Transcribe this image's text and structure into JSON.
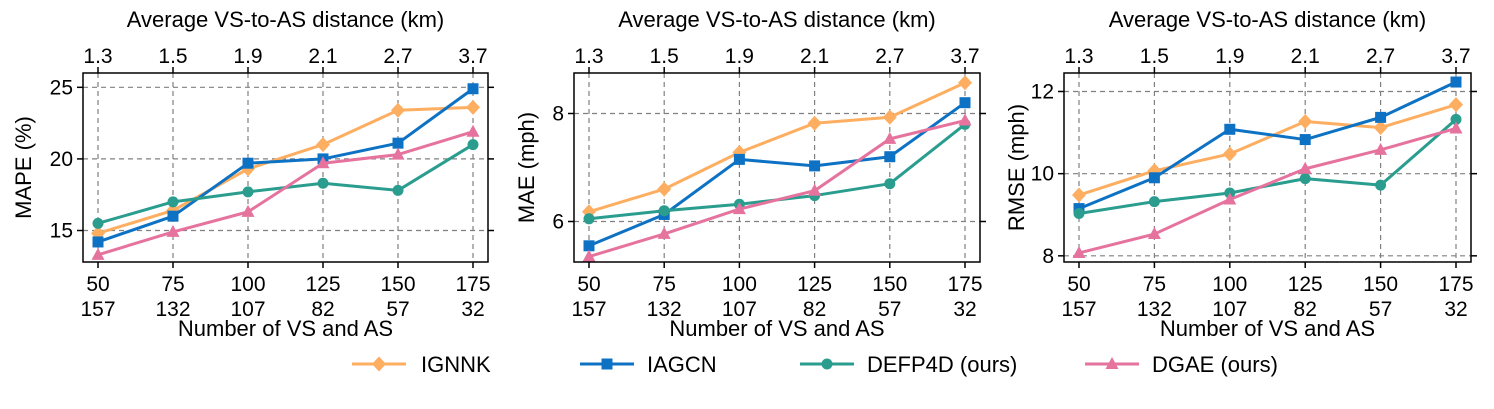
{
  "chart_data": [
    {
      "type": "line",
      "ylabel": "MAPE (%)",
      "xlabel": "Number of VS and AS",
      "top_xlabel": "Average VS-to-AS distance (km)",
      "vs_counts": [
        "50",
        "75",
        "100",
        "125",
        "150",
        "175"
      ],
      "as_counts": [
        "157",
        "132",
        "107",
        "82",
        "57",
        "32"
      ],
      "top_ticks": [
        "1.3",
        "1.5",
        "1.9",
        "2.1",
        "2.7",
        "3.7"
      ],
      "ylim": [
        12.8,
        26.0
      ],
      "yticks": [
        15,
        20,
        25
      ],
      "ytick_labels": [
        "15",
        "20",
        "25"
      ],
      "grid": true,
      "series": [
        {
          "name": "IGNNK",
          "values": [
            14.8,
            16.4,
            19.3,
            21.0,
            23.4,
            23.6
          ]
        },
        {
          "name": "IAGCN",
          "values": [
            14.2,
            16.0,
            19.7,
            20.0,
            21.1,
            24.9
          ]
        },
        {
          "name": "DEFP4D (ours)",
          "values": [
            15.5,
            17.0,
            17.7,
            18.3,
            17.8,
            21.0
          ]
        },
        {
          "name": "DGAE (ours)",
          "values": [
            13.3,
            14.9,
            16.3,
            19.7,
            20.3,
            21.9
          ]
        }
      ]
    },
    {
      "type": "line",
      "ylabel": "MAE (mph)",
      "xlabel": "Number of VS and AS",
      "top_xlabel": "Average VS-to-AS distance (km)",
      "vs_counts": [
        "50",
        "75",
        "100",
        "125",
        "150",
        "175"
      ],
      "as_counts": [
        "157",
        "132",
        "107",
        "82",
        "57",
        "32"
      ],
      "top_ticks": [
        "1.3",
        "1.5",
        "1.9",
        "2.1",
        "2.7",
        "3.7"
      ],
      "ylim": [
        5.25,
        8.75
      ],
      "yticks": [
        6,
        8
      ],
      "ytick_labels": [
        "6",
        "8"
      ],
      "grid": true,
      "series": [
        {
          "name": "IGNNK",
          "values": [
            6.18,
            6.6,
            7.28,
            7.82,
            7.93,
            8.57
          ]
        },
        {
          "name": "IAGCN",
          "values": [
            5.55,
            6.13,
            7.15,
            7.03,
            7.2,
            8.2
          ]
        },
        {
          "name": "DEFP4D (ours)",
          "values": [
            6.05,
            6.2,
            6.32,
            6.48,
            6.7,
            7.8
          ]
        },
        {
          "name": "DGAE (ours)",
          "values": [
            5.35,
            5.77,
            6.23,
            6.57,
            7.53,
            7.87
          ]
        }
      ]
    },
    {
      "type": "line",
      "ylabel": "RMSE (mph)",
      "xlabel": "Number of VS and AS",
      "top_xlabel": "Average VS-to-AS distance (km)",
      "vs_counts": [
        "50",
        "75",
        "100",
        "125",
        "150",
        "175"
      ],
      "as_counts": [
        "157",
        "132",
        "107",
        "82",
        "57",
        "32"
      ],
      "top_ticks": [
        "1.3",
        "1.5",
        "1.9",
        "2.1",
        "2.7",
        "3.7"
      ],
      "ylim": [
        7.85,
        12.45
      ],
      "yticks": [
        8,
        10,
        12
      ],
      "ytick_labels": [
        "8",
        "10",
        "12"
      ],
      "grid": true,
      "series": [
        {
          "name": "IGNNK",
          "values": [
            9.48,
            10.07,
            10.48,
            11.27,
            11.12,
            11.68
          ]
        },
        {
          "name": "IAGCN",
          "values": [
            9.15,
            9.9,
            11.08,
            10.83,
            11.37,
            12.23
          ]
        },
        {
          "name": "DEFP4D (ours)",
          "values": [
            9.03,
            9.32,
            9.53,
            9.88,
            9.72,
            11.32
          ]
        },
        {
          "name": "DGAE (ours)",
          "values": [
            8.07,
            8.53,
            9.37,
            10.12,
            10.58,
            11.1
          ]
        }
      ]
    }
  ],
  "legend": [
    {
      "name": "IGNNK",
      "color": "#FDAE61",
      "marker": "diamond"
    },
    {
      "name": "IAGCN",
      "color": "#0E72C4",
      "marker": "square"
    },
    {
      "name": "DEFP4D (ours)",
      "color": "#2A9D8F",
      "marker": "circle"
    },
    {
      "name": "DGAE (ours)",
      "color": "#E5739E",
      "marker": "triangle"
    }
  ]
}
